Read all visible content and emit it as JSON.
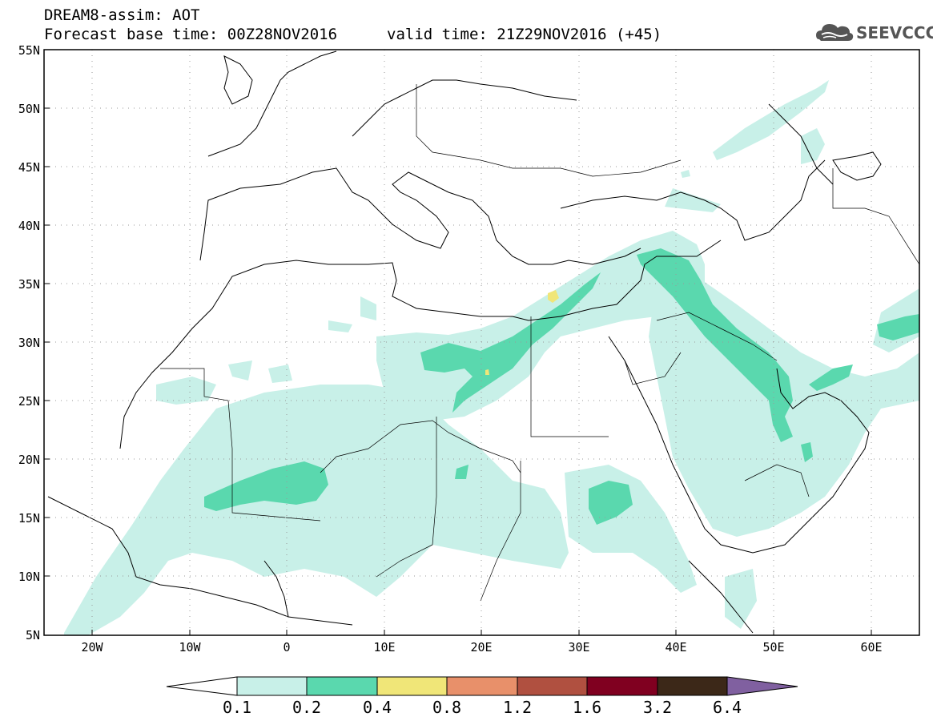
{
  "header": {
    "title_line1": "DREAM8-assim: AOT",
    "title_line2": "Forecast base time: 00Z28NOV2016",
    "valid_time": "valid time: 21Z29NOV2016 (+45)"
  },
  "logo": {
    "text": "SEEVCCC",
    "icon": "cloud-icon"
  },
  "map": {
    "lat_labels": [
      "55N",
      "50N",
      "45N",
      "40N",
      "35N",
      "30N",
      "25N",
      "20N",
      "15N",
      "10N",
      "5N"
    ],
    "lon_labels": [
      "20W",
      "10W",
      "0",
      "10E",
      "20E",
      "30E",
      "40E",
      "50E",
      "60E"
    ],
    "extent": {
      "lon": [
        -25,
        65
      ],
      "lat": [
        5,
        55
      ]
    }
  },
  "colorbar": {
    "labels": [
      "0.1",
      "0.2",
      "0.4",
      "0.8",
      "1.2",
      "1.6",
      "3.2",
      "6.4"
    ],
    "colors": [
      "#ffffff",
      "#c8f0e8",
      "#5ad8ae",
      "#f0e678",
      "#e8906a",
      "#b05040",
      "#800020",
      "#3c2818",
      "#8060a0"
    ]
  }
}
